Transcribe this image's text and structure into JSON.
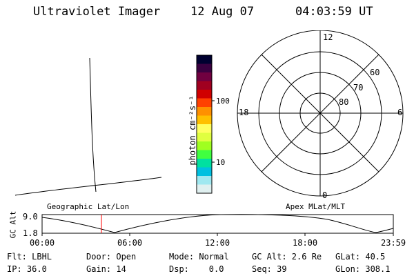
{
  "header": {
    "title": "Ultraviolet Imager",
    "date": "12 Aug 07",
    "time": "04:03:59 UT"
  },
  "colorbar": {
    "label": "photon cm⁻²s⁻¹",
    "tick_100": "100",
    "tick_10": "10",
    "colors": [
      "#000030",
      "#3a0040",
      "#700040",
      "#a00020",
      "#d00000",
      "#ff4000",
      "#ff9000",
      "#ffc000",
      "#ffff60",
      "#e0ff40",
      "#a0ff20",
      "#40ff40",
      "#00e0a0",
      "#00c0e0",
      "#a0e8f0",
      "#e0f0f0"
    ]
  },
  "polar": {
    "mlt_top": "12",
    "mlt_bottom": "0",
    "mlt_left": "18",
    "mlt_right": "6",
    "lat_60": "60",
    "lat_70": "70",
    "lat_80": "80"
  },
  "timeline": {
    "left_label": "Geographic Lat/Lon",
    "right_label": "Apex MLat/MLT",
    "axis_title": "GC Alt",
    "y_max": "9.0",
    "y_min": "1.8",
    "x_ticks": [
      "00:00",
      "06:00",
      "12:00",
      "18:00",
      "23:59"
    ]
  },
  "info": {
    "row1": [
      "Flt: LBHL",
      "Door: Open",
      "Mode: Normal",
      "GC Alt: 2.6 Re",
      "GLat: 40.5"
    ],
    "row2": [
      "IP: 36.0",
      "Gain: 14",
      "Dsp:    0.0",
      "Seq: 39",
      "GLon: 308.1"
    ]
  }
}
